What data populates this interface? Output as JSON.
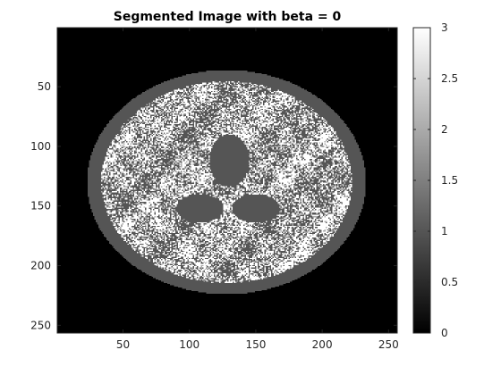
{
  "chart_data": {
    "type": "heatmap",
    "title": "Segmented Image with beta = 0",
    "xlabel": "",
    "ylabel": "",
    "image_size": [
      256,
      256
    ],
    "x_ticks": [
      50,
      100,
      150,
      200,
      250
    ],
    "y_ticks": [
      50,
      100,
      150,
      200,
      250
    ],
    "x_range": [
      0.5,
      256.5
    ],
    "y_range": [
      0.5,
      256.5
    ],
    "y_direction": "reversed",
    "grid": false,
    "colormap": "gray",
    "colorbar": {
      "range": [
        0,
        3
      ],
      "ticks": [
        0,
        0.5,
        1,
        1.5,
        2,
        2.5,
        3
      ],
      "tick_labels": [
        "0",
        "0.5",
        "1",
        "1.5",
        "2",
        "2.5",
        "3"
      ],
      "placement": "right"
    },
    "segment_classes": [
      {
        "value": 0,
        "color": "#000000"
      },
      {
        "value": 1,
        "color": "#555555"
      },
      {
        "value": 2,
        "color": "#aaaaaa"
      },
      {
        "value": 3,
        "color": "#ffffff"
      }
    ],
    "regions": {
      "brain_outline": {
        "center": [
          128,
          130
        ],
        "radii": [
          105,
          94
        ],
        "value": 1
      },
      "ventricles": [
        {
          "center": [
            108,
            152
          ],
          "radii": [
            18,
            12
          ]
        },
        {
          "center": [
            150,
            152
          ],
          "radii": [
            18,
            12
          ]
        },
        {
          "center": [
            130,
            112
          ],
          "radii": [
            15,
            22
          ]
        }
      ]
    }
  }
}
